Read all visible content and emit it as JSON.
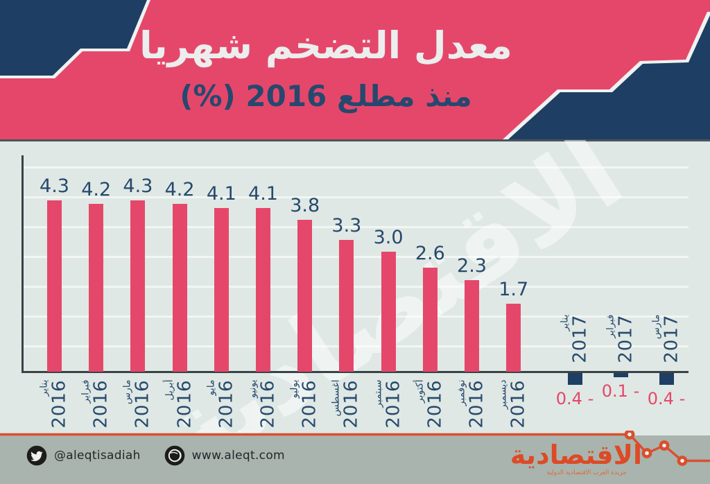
{
  "header": {
    "title_line1": "معدل التضخم شهريا",
    "title_line2": "منذ مطلع 2016 (%)"
  },
  "watermark": "الاقتصادية",
  "chart_data": {
    "type": "bar",
    "title": "معدل التضخم شهريا منذ مطلع 2016 (%)",
    "unit": "%",
    "categories": [
      "يناير 2016",
      "فبراير 2016",
      "مارس 2016",
      "أبريل 2016",
      "مايو 2016",
      "يونيو 2016",
      "يوليو 2016",
      "اغسطس 2016",
      "سبتمبر 2016",
      "أكتوبر 2016",
      "نوفمبر 2016",
      "ديسمبر 2016",
      "يناير 2017",
      "فبراير 2017",
      "مارس 2017"
    ],
    "values": [
      4.3,
      4.2,
      4.3,
      4.2,
      4.1,
      4.1,
      3.8,
      3.3,
      3.0,
      2.6,
      2.3,
      1.7,
      -0.4,
      -0.1,
      -0.4
    ],
    "value_labels": [
      "4.3",
      "4.2",
      "4.3",
      "4.2",
      "4.1",
      "4.1",
      "3.8",
      "3.3",
      "3.0",
      "2.6",
      "2.3",
      "1.7",
      "0.4 -",
      "0.1 -",
      "0.4 -"
    ],
    "ylim": [
      -0.5,
      4.5
    ],
    "grid": true,
    "legend": false,
    "bar_color_positive": "#e5476b",
    "bar_color_negative": "#1e3f63",
    "value_label_color_positive": "#27496d",
    "value_label_color_negative": "#e5476b"
  },
  "footer": {
    "twitter_handle": "@aleqtisadiah",
    "website": "www.aleqt.com",
    "logo_text": "الاقتصادية",
    "logo_tagline": "جريدة العرب الاقتصادية الدولية"
  }
}
